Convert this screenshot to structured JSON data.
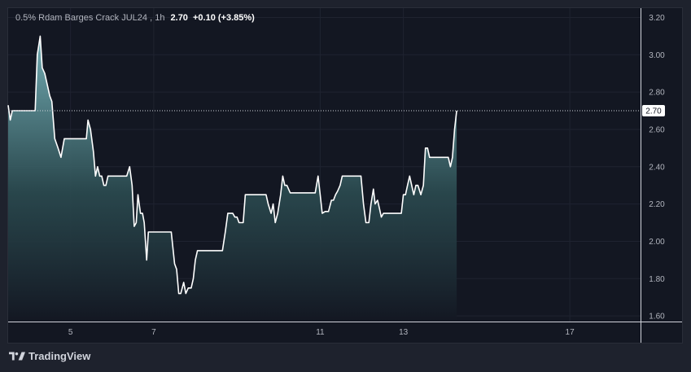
{
  "legend": {
    "symbol": "0.5% Rdam Barges Crack JUL24",
    "interval": "1h",
    "separator": ",",
    "last": "2.70",
    "change": "+0.10 (+3.85%)"
  },
  "brand": {
    "name": "TradingView",
    "icon": "tradingview-logo-icon"
  },
  "colors": {
    "background": "#131722",
    "line": "#ffffff",
    "area_top": "#79b6bd",
    "area_bottom": "#131722",
    "axis_text": "#b2b5be",
    "grid": "#1f2330"
  },
  "chart_data": {
    "type": "area",
    "ylim": [
      1.57,
      3.25
    ],
    "y_ticks": [
      3.2,
      3.0,
      2.8,
      2.6,
      2.4,
      2.2,
      2.0,
      1.8,
      1.6
    ],
    "x_ticks": [
      {
        "label": "5",
        "x": 5
      },
      {
        "label": "7",
        "x": 7
      },
      {
        "label": "11",
        "x": 11
      },
      {
        "label": "13",
        "x": 13
      },
      {
        "label": "17",
        "x": 17
      }
    ],
    "xlim": [
      3.5,
      18.7
    ],
    "last_price": 2.7,
    "last_price_label": "2.70",
    "grid": true,
    "points": [
      [
        3.5,
        2.73
      ],
      [
        3.55,
        2.65
      ],
      [
        3.6,
        2.7
      ],
      [
        4.0,
        2.7
      ],
      [
        4.15,
        2.7
      ],
      [
        4.2,
        3.0
      ],
      [
        4.27,
        3.1
      ],
      [
        4.32,
        2.93
      ],
      [
        4.38,
        2.9
      ],
      [
        4.45,
        2.83
      ],
      [
        4.5,
        2.78
      ],
      [
        4.55,
        2.75
      ],
      [
        4.62,
        2.55
      ],
      [
        4.7,
        2.5
      ],
      [
        4.77,
        2.45
      ],
      [
        4.85,
        2.55
      ],
      [
        5.0,
        2.55
      ],
      [
        5.25,
        2.55
      ],
      [
        5.38,
        2.55
      ],
      [
        5.42,
        2.65
      ],
      [
        5.48,
        2.6
      ],
      [
        5.55,
        2.48
      ],
      [
        5.6,
        2.35
      ],
      [
        5.65,
        2.4
      ],
      [
        5.7,
        2.35
      ],
      [
        5.75,
        2.35
      ],
      [
        5.8,
        2.3
      ],
      [
        5.85,
        2.3
      ],
      [
        5.9,
        2.35
      ],
      [
        6.35,
        2.35
      ],
      [
        6.42,
        2.4
      ],
      [
        6.48,
        2.3
      ],
      [
        6.53,
        2.08
      ],
      [
        6.58,
        2.1
      ],
      [
        6.62,
        2.25
      ],
      [
        6.68,
        2.15
      ],
      [
        6.73,
        2.15
      ],
      [
        6.77,
        2.1
      ],
      [
        6.83,
        1.9
      ],
      [
        6.87,
        2.05
      ],
      [
        7.2,
        2.05
      ],
      [
        7.42,
        2.05
      ],
      [
        7.5,
        1.88
      ],
      [
        7.55,
        1.85
      ],
      [
        7.6,
        1.72
      ],
      [
        7.65,
        1.72
      ],
      [
        7.72,
        1.78
      ],
      [
        7.77,
        1.72
      ],
      [
        7.83,
        1.75
      ],
      [
        7.9,
        1.75
      ],
      [
        7.95,
        1.8
      ],
      [
        8.0,
        1.9
      ],
      [
        8.05,
        1.95
      ],
      [
        8.35,
        1.95
      ],
      [
        8.65,
        1.95
      ],
      [
        8.72,
        2.05
      ],
      [
        8.78,
        2.15
      ],
      [
        8.9,
        2.15
      ],
      [
        8.95,
        2.13
      ],
      [
        9.0,
        2.13
      ],
      [
        9.05,
        2.1
      ],
      [
        9.15,
        2.1
      ],
      [
        9.2,
        2.25
      ],
      [
        9.7,
        2.25
      ],
      [
        9.75,
        2.2
      ],
      [
        9.82,
        2.15
      ],
      [
        9.87,
        2.2
      ],
      [
        9.92,
        2.1
      ],
      [
        9.98,
        2.15
      ],
      [
        10.05,
        2.25
      ],
      [
        10.1,
        2.35
      ],
      [
        10.15,
        2.3
      ],
      [
        10.2,
        2.3
      ],
      [
        10.28,
        2.26
      ],
      [
        10.4,
        2.26
      ],
      [
        10.88,
        2.26
      ],
      [
        10.95,
        2.35
      ],
      [
        11.0,
        2.25
      ],
      [
        11.05,
        2.15
      ],
      [
        11.12,
        2.16
      ],
      [
        11.2,
        2.16
      ],
      [
        11.27,
        2.22
      ],
      [
        11.32,
        2.22
      ],
      [
        11.37,
        2.25
      ],
      [
        11.42,
        2.27
      ],
      [
        11.48,
        2.3
      ],
      [
        11.53,
        2.35
      ],
      [
        11.98,
        2.35
      ],
      [
        12.04,
        2.2
      ],
      [
        12.1,
        2.1
      ],
      [
        12.17,
        2.1
      ],
      [
        12.22,
        2.2
      ],
      [
        12.28,
        2.28
      ],
      [
        12.32,
        2.2
      ],
      [
        12.38,
        2.22
      ],
      [
        12.42,
        2.18
      ],
      [
        12.47,
        2.13
      ],
      [
        12.52,
        2.15
      ],
      [
        12.58,
        2.15
      ],
      [
        12.63,
        2.15
      ],
      [
        12.95,
        2.15
      ],
      [
        13.0,
        2.25
      ],
      [
        13.05,
        2.25
      ],
      [
        13.1,
        2.3
      ],
      [
        13.15,
        2.35
      ],
      [
        13.2,
        2.3
      ],
      [
        13.25,
        2.25
      ],
      [
        13.3,
        2.3
      ],
      [
        13.35,
        2.3
      ],
      [
        13.42,
        2.25
      ],
      [
        13.48,
        2.3
      ],
      [
        13.53,
        2.5
      ],
      [
        13.58,
        2.5
      ],
      [
        13.63,
        2.45
      ],
      [
        13.75,
        2.45
      ],
      [
        14.08,
        2.45
      ],
      [
        14.13,
        2.4
      ],
      [
        14.18,
        2.45
      ],
      [
        14.23,
        2.6
      ],
      [
        14.28,
        2.7
      ]
    ]
  }
}
